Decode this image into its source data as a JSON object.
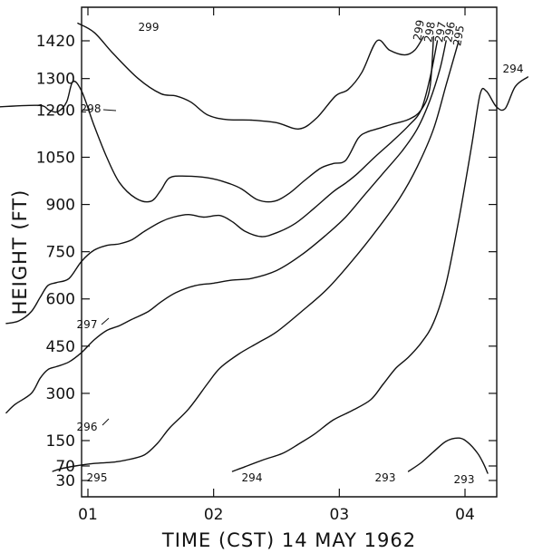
{
  "chart_data": {
    "type": "line",
    "title": "",
    "xlabel": "TIME (CST) 14 MAY 1962",
    "ylabel": "HEIGHT (FT)",
    "x_unit": "hours CST",
    "x_ticks": [
      {
        "value": 1,
        "label": "01"
      },
      {
        "value": 2,
        "label": "02"
      },
      {
        "value": 3,
        "label": "03"
      },
      {
        "value": 4,
        "label": "04"
      }
    ],
    "y_ticks": [
      30,
      70,
      150,
      300,
      450,
      600,
      750,
      900,
      1050,
      1200,
      1300,
      1420
    ],
    "xlim": [
      0.2,
      4.55
    ],
    "ylim": [
      0,
      1500
    ],
    "grid": false,
    "series": [
      {
        "name": "299",
        "labels": [
          "299",
          "299"
        ],
        "x": [
          0.92,
          1.05,
          1.2,
          1.4,
          1.58,
          1.7,
          1.82,
          1.95,
          2.1,
          2.3,
          2.5,
          2.68,
          2.82,
          2.97,
          3.07,
          3.18,
          3.3,
          3.4,
          3.52,
          3.6,
          3.67
        ],
        "y": [
          1462,
          1440,
          1380,
          1300,
          1252,
          1245,
          1225,
          1185,
          1170,
          1168,
          1160,
          1140,
          1175,
          1245,
          1265,
          1320,
          1420,
          1390,
          1375,
          1390,
          1430
        ]
      },
      {
        "name": "298",
        "labels": [
          "298",
          "298"
        ],
        "x": [
          0.2,
          0.6,
          0.69,
          0.76,
          0.83,
          0.88,
          0.95,
          1.05,
          1.15,
          1.25,
          1.38,
          1.5,
          1.58,
          1.65,
          1.78,
          1.95,
          2.1,
          2.22,
          2.35,
          2.48,
          2.6,
          2.72,
          2.85,
          2.95,
          3.05,
          3.15,
          3.22,
          3.3,
          3.42,
          3.55,
          3.65,
          3.72,
          3.75
        ],
        "y": [
          1208,
          1215,
          1200,
          1195,
          1225,
          1290,
          1260,
          1150,
          1050,
          970,
          920,
          910,
          945,
          985,
          990,
          985,
          970,
          950,
          915,
          910,
          935,
          975,
          1015,
          1030,
          1040,
          1110,
          1130,
          1140,
          1155,
          1170,
          1200,
          1270,
          1430
        ]
      },
      {
        "name": "297",
        "labels": [
          "297",
          "297"
        ],
        "x": [
          0.35,
          0.45,
          0.55,
          0.62,
          0.68,
          0.75,
          0.85,
          0.95,
          1.05,
          1.15,
          1.25,
          1.35,
          1.45,
          1.58,
          1.68,
          1.8,
          1.92,
          2.05,
          2.15,
          2.25,
          2.38,
          2.5,
          2.65,
          2.8,
          2.95,
          3.05,
          3.15,
          3.28,
          3.42,
          3.55,
          3.65,
          3.72,
          3.78
        ],
        "y": [
          522,
          530,
          560,
          605,
          642,
          652,
          665,
          720,
          755,
          770,
          775,
          788,
          815,
          845,
          860,
          868,
          860,
          865,
          845,
          815,
          798,
          810,
          840,
          888,
          940,
          968,
          1000,
          1050,
          1100,
          1150,
          1200,
          1300,
          1420
        ]
      },
      {
        "name": "296",
        "labels": [
          "296",
          "296"
        ],
        "x": [
          0.35,
          0.42,
          0.55,
          0.62,
          0.68,
          0.75,
          0.85,
          0.95,
          1.05,
          1.15,
          1.25,
          1.35,
          1.48,
          1.58,
          1.7,
          1.85,
          2.0,
          2.15,
          2.3,
          2.5,
          2.7,
          2.9,
          3.05,
          3.2,
          3.35,
          3.5,
          3.62,
          3.72,
          3.8,
          3.85
        ],
        "y": [
          238,
          265,
          300,
          348,
          375,
          385,
          400,
          430,
          470,
          500,
          515,
          535,
          560,
          590,
          620,
          642,
          650,
          660,
          665,
          690,
          740,
          805,
          860,
          930,
          1000,
          1070,
          1140,
          1230,
          1330,
          1420
        ]
      },
      {
        "name": "295",
        "labels": [
          "295"
        ],
        "x": [
          0.72,
          0.78,
          0.9,
          1.05,
          1.2,
          1.32,
          1.45,
          1.55,
          1.65,
          1.8,
          1.95,
          2.05,
          2.2,
          2.35,
          2.5,
          2.7,
          2.9,
          3.1,
          3.3,
          3.48,
          3.62,
          3.75,
          3.85,
          3.95
        ],
        "y": [
          55,
          62,
          70,
          78,
          82,
          90,
          105,
          140,
          190,
          250,
          330,
          380,
          425,
          460,
          495,
          560,
          630,
          720,
          820,
          920,
          1020,
          1140,
          1280,
          1420
        ]
      },
      {
        "name": "294",
        "labels": [
          "294",
          "294"
        ],
        "x": [
          2.15,
          2.25,
          2.4,
          2.55,
          2.68,
          2.8,
          2.95,
          3.1,
          3.25,
          3.35,
          3.45,
          3.55,
          3.65,
          3.75,
          3.85,
          3.95,
          4.05,
          4.12,
          4.17,
          4.25,
          4.32,
          4.4,
          4.5
        ],
        "y": [
          55,
          68,
          90,
          110,
          140,
          170,
          215,
          245,
          280,
          330,
          380,
          415,
          460,
          525,
          650,
          850,
          1080,
          1250,
          1260,
          1210,
          1205,
          1275,
          1305
        ]
      },
      {
        "name": "293",
        "labels": [
          "293",
          "293"
        ],
        "x": [
          3.55,
          3.65,
          3.75,
          3.85,
          3.95,
          4.02,
          4.1,
          4.15,
          4.18
        ],
        "y": [
          55,
          80,
          115,
          148,
          158,
          145,
          110,
          75,
          50
        ]
      }
    ]
  }
}
